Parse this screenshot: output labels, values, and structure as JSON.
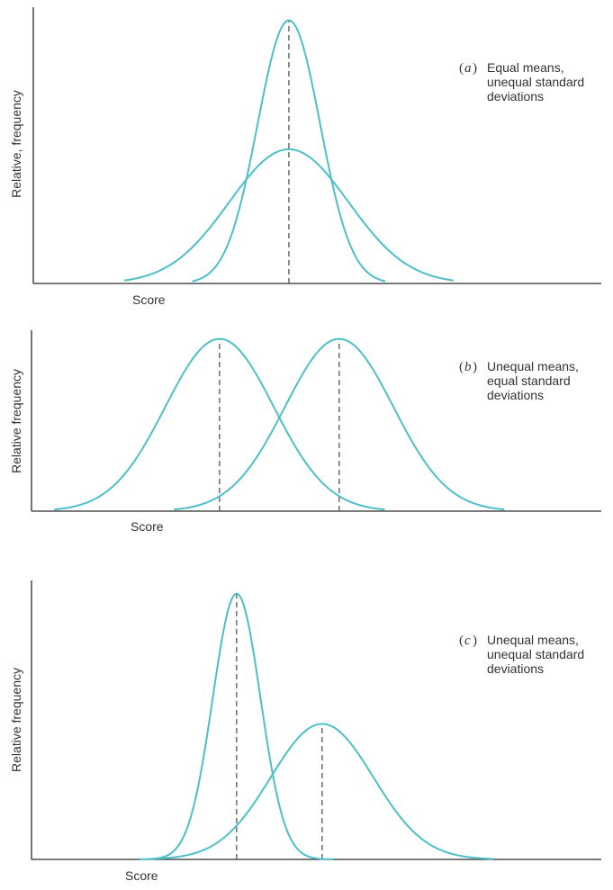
{
  "colors": {
    "curve": "#4cbfc9",
    "axis": "#2a2a2a",
    "mean_line": "#555555",
    "text": "#333333"
  },
  "chart_data": [
    {
      "type": "line",
      "panel_letter": "a",
      "description": [
        "Equal means,",
        "unequal standard",
        "deviations"
      ],
      "xlabel": "Score",
      "ylabel": "Relative, frequency",
      "x_ticks": [],
      "y_ticks": [],
      "xlim": [
        0,
        10
      ],
      "ylim": [
        0,
        1.05
      ],
      "series": [
        {
          "mean": 4.5,
          "sd": 0.55,
          "peak": 1.0,
          "from": 2.8,
          "to": 6.2
        },
        {
          "mean": 4.5,
          "sd": 1.05,
          "peak": 0.51,
          "from": 1.6,
          "to": 7.4
        }
      ],
      "mean_markers": [
        4.5
      ]
    },
    {
      "type": "line",
      "panel_letter": "b",
      "description": [
        "Unequal means,",
        "equal standard",
        "deviations"
      ],
      "xlabel": "Score",
      "ylabel": "Relative frequency",
      "x_ticks": [],
      "y_ticks": [],
      "xlim": [
        0,
        10
      ],
      "ylim": [
        0,
        1.05
      ],
      "series": [
        {
          "mean": 3.3,
          "sd": 0.95,
          "peak": 1.0,
          "from": 0.4,
          "to": 6.2
        },
        {
          "mean": 5.4,
          "sd": 0.95,
          "peak": 1.0,
          "from": 2.5,
          "to": 8.3
        }
      ],
      "mean_markers": [
        3.3,
        5.4
      ]
    },
    {
      "type": "line",
      "panel_letter": "c",
      "description": [
        "Unequal means,",
        "unequal standard",
        "deviations"
      ],
      "xlabel": "Score",
      "ylabel": "Relative frequency",
      "x_ticks": [],
      "y_ticks": [],
      "xlim": [
        0,
        10
      ],
      "ylim": [
        0,
        1.05
      ],
      "series": [
        {
          "mean": 3.6,
          "sd": 0.42,
          "peak": 1.0,
          "from": 1.9,
          "to": 5.3
        },
        {
          "mean": 5.1,
          "sd": 0.9,
          "peak": 0.51,
          "from": 2.1,
          "to": 8.1
        }
      ],
      "mean_markers": [
        3.6,
        5.1
      ]
    }
  ]
}
